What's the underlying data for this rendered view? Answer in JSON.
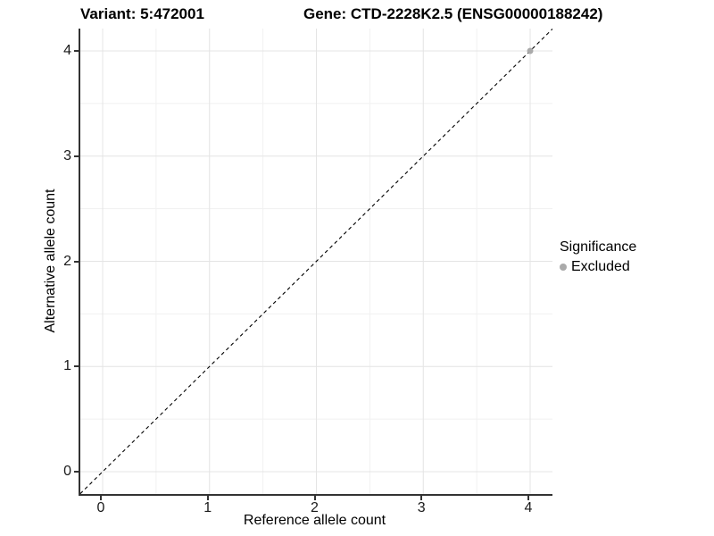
{
  "header": {
    "variant_title": "Variant: 5:472001",
    "gene_title": "Gene: CTD-2228K2.5 (ENSG00000188242)"
  },
  "chart_data": {
    "type": "scatter",
    "title": "Variant: 5:472001 | Gene: CTD-2228K2.5 (ENSG00000188242)",
    "xlabel": "Reference allele count",
    "ylabel": "Alternative allele count",
    "xlim": [
      -0.21,
      4.21
    ],
    "ylim": [
      -0.21,
      4.21
    ],
    "x_ticks": [
      0,
      1,
      2,
      3,
      4
    ],
    "y_ticks": [
      0,
      1,
      2,
      3,
      4
    ],
    "x_tick_labels": [
      "0",
      "1",
      "2",
      "3",
      "4"
    ],
    "y_tick_labels": [
      "0",
      "1",
      "2",
      "3",
      "4"
    ],
    "minor_ticks": [
      0.5,
      1.5,
      2.5,
      3.5
    ],
    "grid": true,
    "legend": {
      "title": "Significance",
      "position": "right",
      "items": [
        {
          "label": "Excluded",
          "color": "#aaaaaa"
        }
      ]
    },
    "reference_line": {
      "type": "identity",
      "equation": "y = x",
      "style": "dashed",
      "color": "#000000"
    },
    "series": [
      {
        "name": "Excluded",
        "color": "#aaaaaa",
        "points": [
          {
            "x": 4,
            "y": 4
          }
        ]
      }
    ],
    "colors": {
      "grid_major": "#e4e4e4",
      "grid_minor": "#f1f1f1",
      "axis_line": "#333333",
      "point": "#aaaaaa"
    }
  }
}
